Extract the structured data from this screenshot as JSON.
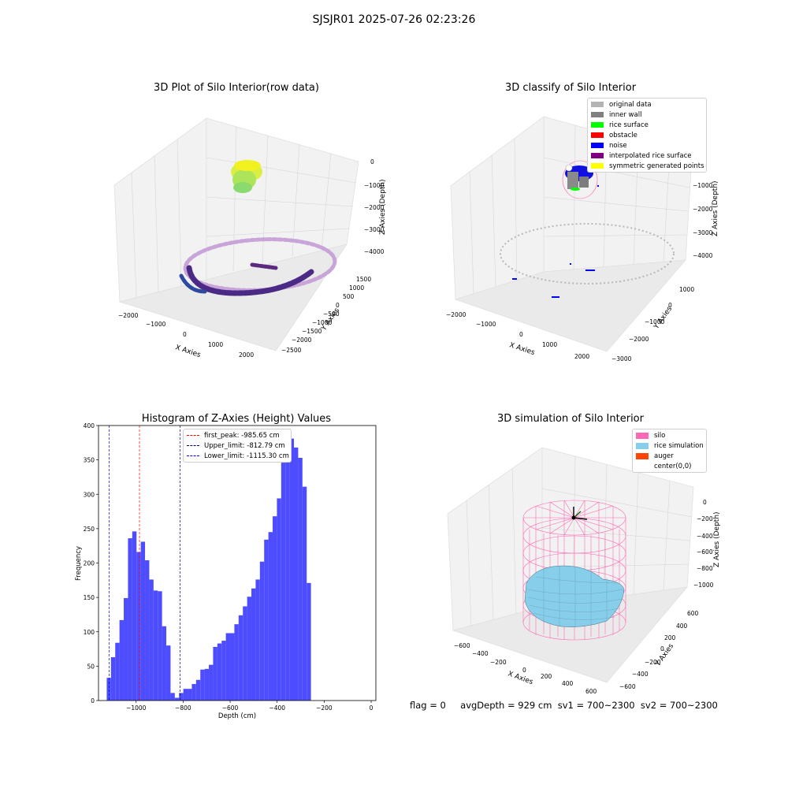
{
  "suptitle": "SJSJR01 2025-07-26 02:23:26",
  "panels": {
    "raw": {
      "title": "3D Plot of Silo Interior(row data)",
      "xlabel": "X Axies",
      "ylabel": "Y Axies",
      "zlabel": "Z Axies (Depth)",
      "xticks": [
        "−2000",
        "−1000",
        "0",
        "1000",
        "2000"
      ],
      "yticks": [
        "1500",
        "1000",
        "500",
        "0",
        "−500",
        "−1000",
        "−1500",
        "−2000",
        "−2500"
      ],
      "zticks": [
        "0",
        "−1000",
        "−2000",
        "−3000",
        "−4000"
      ]
    },
    "classify": {
      "title": "3D classify of Silo Interior",
      "xlabel": "X Axies",
      "ylabel": "Y Axies",
      "zlabel": "Z Axies (Depth)",
      "xticks": [
        "−2000",
        "−1000",
        "0",
        "1000",
        "2000"
      ],
      "yticks": [
        "1000",
        "0",
        "−1000",
        "−2000",
        "−3000"
      ],
      "zticks": [
        "0",
        "−1000",
        "−2000",
        "−3000",
        "−4000"
      ],
      "legend": [
        {
          "label": "original data",
          "color": "#b3b3b3"
        },
        {
          "label": "inner wall",
          "color": "#808080"
        },
        {
          "label": "rice surface",
          "color": "#00ff00"
        },
        {
          "label": "obstacle",
          "color": "#ff0000"
        },
        {
          "label": "noise",
          "color": "#0000ff"
        },
        {
          "label": "interpolated rice surface",
          "color": "#800080"
        },
        {
          "label": "symmetric generated points",
          "color": "#ffff00"
        }
      ]
    },
    "simulation": {
      "title": "3D simulation of Silo Interior",
      "xlabel": "X Axies",
      "ylabel": "Y Axies",
      "zlabel": "Z Axies (Depth)",
      "xticks": [
        "−600",
        "−400",
        "−200",
        "0",
        "200",
        "400",
        "600"
      ],
      "yticks": [
        "600",
        "400",
        "200",
        "0",
        "−200",
        "−400",
        "−600"
      ],
      "zticks": [
        "0",
        "−200",
        "−400",
        "−600",
        "−800",
        "−1000"
      ],
      "legend": [
        {
          "label": "silo",
          "color": "#ff69b4"
        },
        {
          "label": "rice simulation",
          "color": "#87ceeb"
        },
        {
          "label": "auger",
          "color": "#ff4500"
        },
        {
          "label": "center(0,0)",
          "color": "#ffffff"
        }
      ]
    }
  },
  "chart_data": {
    "type": "bar",
    "title": "Histogram of Z-Axies (Height) Values",
    "xlabel": "Depth (cm)",
    "ylabel": "Frequency",
    "xlim": [
      -1160,
      20
    ],
    "ylim": [
      0,
      400
    ],
    "xticks": [
      -1000,
      -800,
      -600,
      -400,
      -200,
      0
    ],
    "yticks": [
      0,
      50,
      100,
      150,
      200,
      250,
      300,
      350,
      400
    ],
    "bar_color": "#4d4dff",
    "bin_start": -1125,
    "bin_width": 18.1,
    "values": [
      33,
      63,
      84,
      117,
      149,
      236,
      246,
      216,
      231,
      204,
      176,
      160,
      159,
      108,
      80,
      11,
      4,
      11,
      17,
      17,
      24,
      30,
      45,
      46,
      52,
      78,
      83,
      87,
      98,
      98,
      111,
      124,
      137,
      151,
      163,
      176,
      202,
      234,
      245,
      268,
      294,
      346,
      381,
      381,
      368,
      353,
      311,
      171
    ],
    "vlines": [
      {
        "label": "first_peak: -985.65 cm",
        "x": -985.65,
        "color": "#ff0000"
      },
      {
        "label": "Upper_limit: -812.79 cm",
        "x": -812.79,
        "color": "#00008b"
      },
      {
        "label": "Lower_limit: -1115.30 cm",
        "x": -1115.3,
        "color": "#0000ff"
      }
    ],
    "xtick_labels": [
      "−1000",
      "−800",
      "−600",
      "−400",
      "−200",
      "0"
    ],
    "ytick_labels": [
      "0",
      "50",
      "100",
      "150",
      "200",
      "250",
      "300",
      "350",
      "400"
    ]
  },
  "footer": {
    "flag": "flag = 0",
    "stats": "avgDepth = 929 cm  sv1 = 700~2300  sv2 = 700~2300"
  }
}
